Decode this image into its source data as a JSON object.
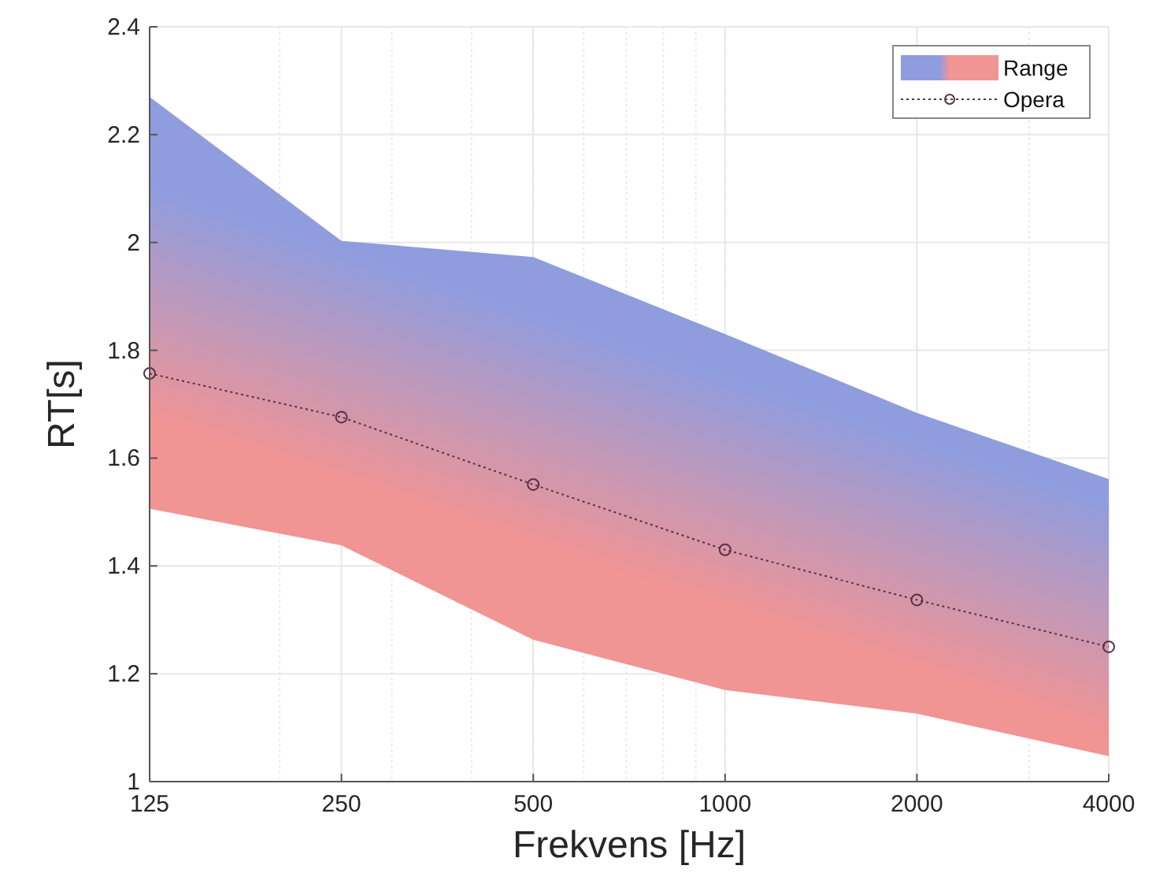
{
  "chart_data": {
    "type": "line",
    "xlabel": "Frekvens [Hz]",
    "ylabel": "RT[s]",
    "x": [
      125,
      250,
      500,
      1000,
      2000,
      4000
    ],
    "series": [
      {
        "name": "Range",
        "type": "area",
        "color": "#8f9ddf",
        "values": [
          null,
          null,
          null,
          null,
          null,
          null
        ],
        "upper": [
          2.27,
          2.003,
          1.973,
          1.83,
          1.684,
          1.561
        ],
        "lower": [
          1.506,
          1.438,
          1.263,
          1.17,
          1.126,
          1.047
        ],
        "colors": [
          "#f19494",
          "#f19494",
          "#f19494",
          "#f19494",
          "#f19494",
          "#f19494"
        ]
      },
      {
        "name": "Opera",
        "type": "line",
        "color": "#553344",
        "values": [
          1.757,
          1.676,
          1.551,
          1.43,
          1.337,
          1.25
        ],
        "marker": "circle",
        "line_style": "dotted"
      }
    ],
    "log": "x",
    "xlim": [
      125,
      4000
    ],
    "ylim": [
      1,
      2.4
    ],
    "xticks": [
      125,
      250,
      500,
      1000,
      2000,
      4000
    ],
    "yticks": [
      1,
      1.2,
      1.4,
      1.6,
      1.8,
      2,
      2.2,
      2.4
    ],
    "grid": true,
    "legend": "top right"
  }
}
